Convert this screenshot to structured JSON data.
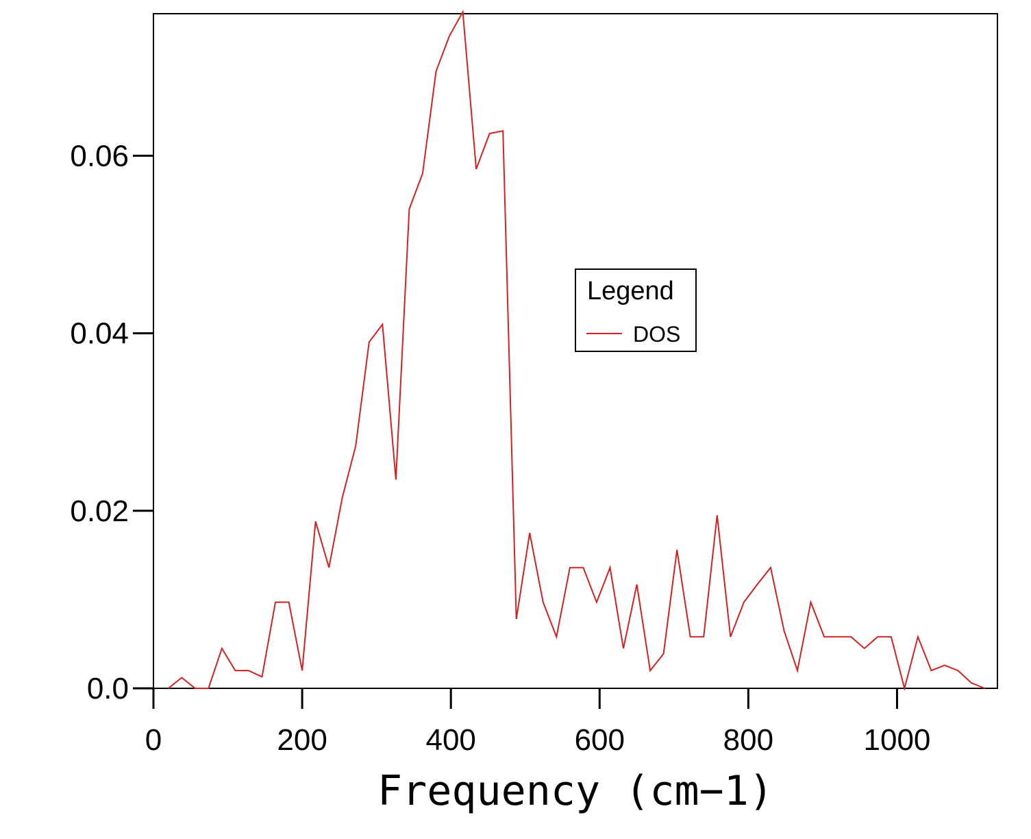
{
  "chart_data": {
    "type": "line",
    "title": "",
    "xlabel": "Frequency (cm−1)",
    "ylabel": "",
    "xlim": [
      0,
      1135
    ],
    "ylim": [
      0,
      0.076
    ],
    "xticks": [
      0,
      200,
      400,
      600,
      800,
      1000
    ],
    "xtick_labels": [
      "0",
      "200",
      "400",
      "600",
      "800",
      "1000"
    ],
    "yticks": [
      0,
      0.02,
      0.04,
      0.06
    ],
    "ytick_labels": [
      "0.0",
      "0.02",
      "0.04",
      "0.06"
    ],
    "grid": false,
    "legend": {
      "title": "Legend",
      "placement": "center-right",
      "entries": [
        "DOS"
      ]
    },
    "series": [
      {
        "name": "DOS",
        "color": "#d42020",
        "x": [
          20,
          38,
          56,
          74,
          92,
          110,
          128,
          146,
          164,
          182,
          200,
          218,
          236,
          254,
          272,
          290,
          308,
          326,
          344,
          362,
          380,
          398,
          416,
          434,
          452,
          470,
          488,
          506,
          524,
          542,
          560,
          578,
          596,
          614,
          632,
          650,
          668,
          686,
          704,
          722,
          740,
          758,
          776,
          794,
          812,
          830,
          848,
          866,
          884,
          902,
          920,
          938,
          956,
          974,
          992,
          1010,
          1028,
          1046,
          1064,
          1082,
          1100,
          1118
        ],
        "values": [
          0.0,
          0.0012,
          0.0,
          0.0,
          0.0045,
          0.002,
          0.002,
          0.0013,
          0.0097,
          0.0097,
          0.002,
          0.0188,
          0.0136,
          0.0215,
          0.0273,
          0.039,
          0.041,
          0.0235,
          0.054,
          0.058,
          0.0695,
          0.0735,
          0.0762,
          0.0585,
          0.0625,
          0.0628,
          0.0078,
          0.0175,
          0.0097,
          0.0058,
          0.0136,
          0.0136,
          0.0097,
          0.0136,
          0.0045,
          0.0117,
          0.002,
          0.0039,
          0.0156,
          0.0058,
          0.0058,
          0.0195,
          0.0058,
          0.0097,
          0.0117,
          0.0136,
          0.0065,
          0.002,
          0.0097,
          0.0058,
          0.0058,
          0.0058,
          0.0045,
          0.0058,
          0.0058,
          0.0,
          0.0058,
          0.002,
          0.0026,
          0.002,
          0.0006,
          0.0
        ]
      }
    ]
  }
}
